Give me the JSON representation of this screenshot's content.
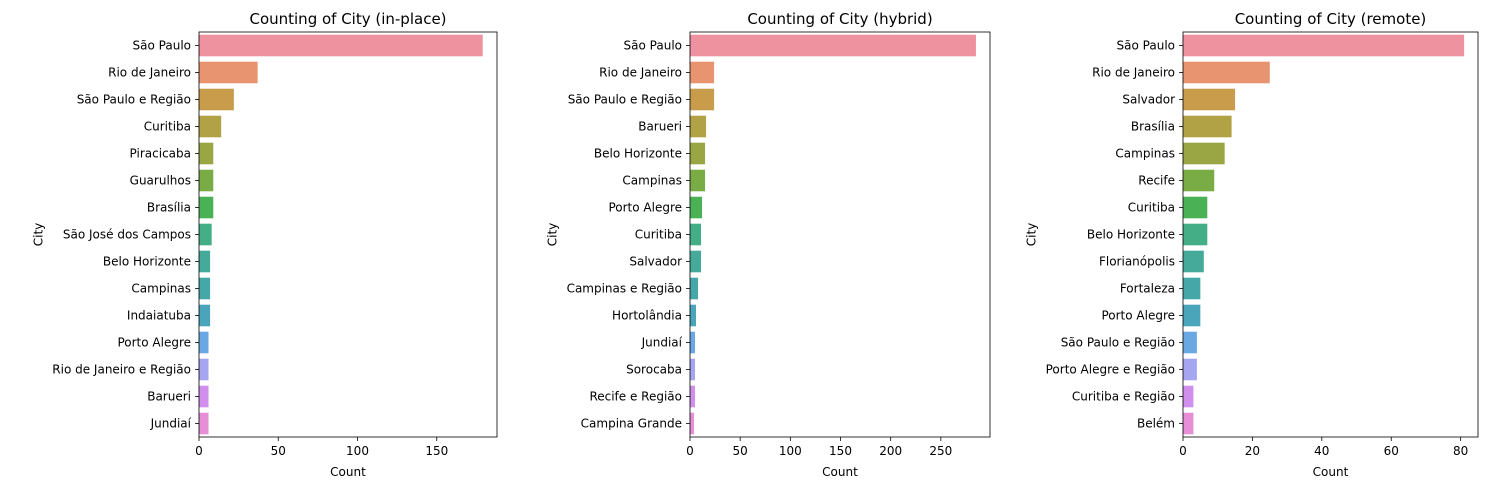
{
  "chart_data": [
    {
      "type": "bar",
      "orientation": "horizontal",
      "title": "Counting of City (in-place)",
      "xlabel": "Count",
      "ylabel": "City",
      "xlim": [
        0,
        188
      ],
      "xticks": [
        0,
        50,
        100,
        150
      ],
      "grid": false,
      "categories": [
        "São Paulo",
        "Rio de Janeiro",
        "São Paulo e Região",
        "Curitiba",
        "Piracicaba",
        "Guarulhos",
        "Brasília",
        "São José dos Campos",
        "Belo Horizonte",
        "Campinas",
        "Indaiatuba",
        "Porto Alegre",
        "Rio de Janeiro e Região",
        "Barueri",
        "Jundiaí"
      ],
      "values": [
        179,
        37,
        22,
        14,
        9,
        9,
        9,
        8,
        7,
        7,
        7,
        6,
        6,
        6,
        6
      ]
    },
    {
      "type": "bar",
      "orientation": "horizontal",
      "title": "Counting of City (hybrid)",
      "xlabel": "Count",
      "ylabel": "City",
      "xlim": [
        0,
        299
      ],
      "xticks": [
        0,
        50,
        100,
        150,
        200,
        250
      ],
      "grid": false,
      "categories": [
        "São Paulo",
        "Rio de Janeiro",
        "São Paulo e Região",
        "Barueri",
        "Belo Horizonte",
        "Campinas",
        "Porto Alegre",
        "Curitiba",
        "Salvador",
        "Campinas e Região",
        "Hortolândia",
        "Jundiaí",
        "Sorocaba",
        "Recife e Região",
        "Campina Grande"
      ],
      "values": [
        285,
        24,
        24,
        16,
        15,
        15,
        12,
        11,
        11,
        8,
        6,
        5,
        5,
        5,
        4
      ]
    },
    {
      "type": "bar",
      "orientation": "horizontal",
      "title": "Counting of City (remote)",
      "xlabel": "Count",
      "ylabel": "City",
      "xlim": [
        0,
        85
      ],
      "xticks": [
        0,
        20,
        40,
        60,
        80
      ],
      "grid": false,
      "categories": [
        "São Paulo",
        "Rio de Janeiro",
        "Salvador",
        "Brasília",
        "Campinas",
        "Recife",
        "Curitiba",
        "Belo Horizonte",
        "Florianópolis",
        "Fortaleza",
        "Porto Alegre",
        "São Paulo e Região",
        "Porto Alegre e Região",
        "Curitiba e Região",
        "Belém"
      ],
      "values": [
        81,
        25,
        15,
        14,
        12,
        9,
        7,
        7,
        6,
        5,
        5,
        4,
        4,
        3,
        3
      ]
    }
  ],
  "palette": [
    "#ee929f",
    "#e89470",
    "#c99c4c",
    "#b1a245",
    "#9aa644",
    "#7aac45",
    "#4ab254",
    "#44ae87",
    "#45aa9a",
    "#46a7a8",
    "#4aa4ba",
    "#6aa8e3",
    "#a6a5ef",
    "#d08fec",
    "#e68ed6"
  ]
}
